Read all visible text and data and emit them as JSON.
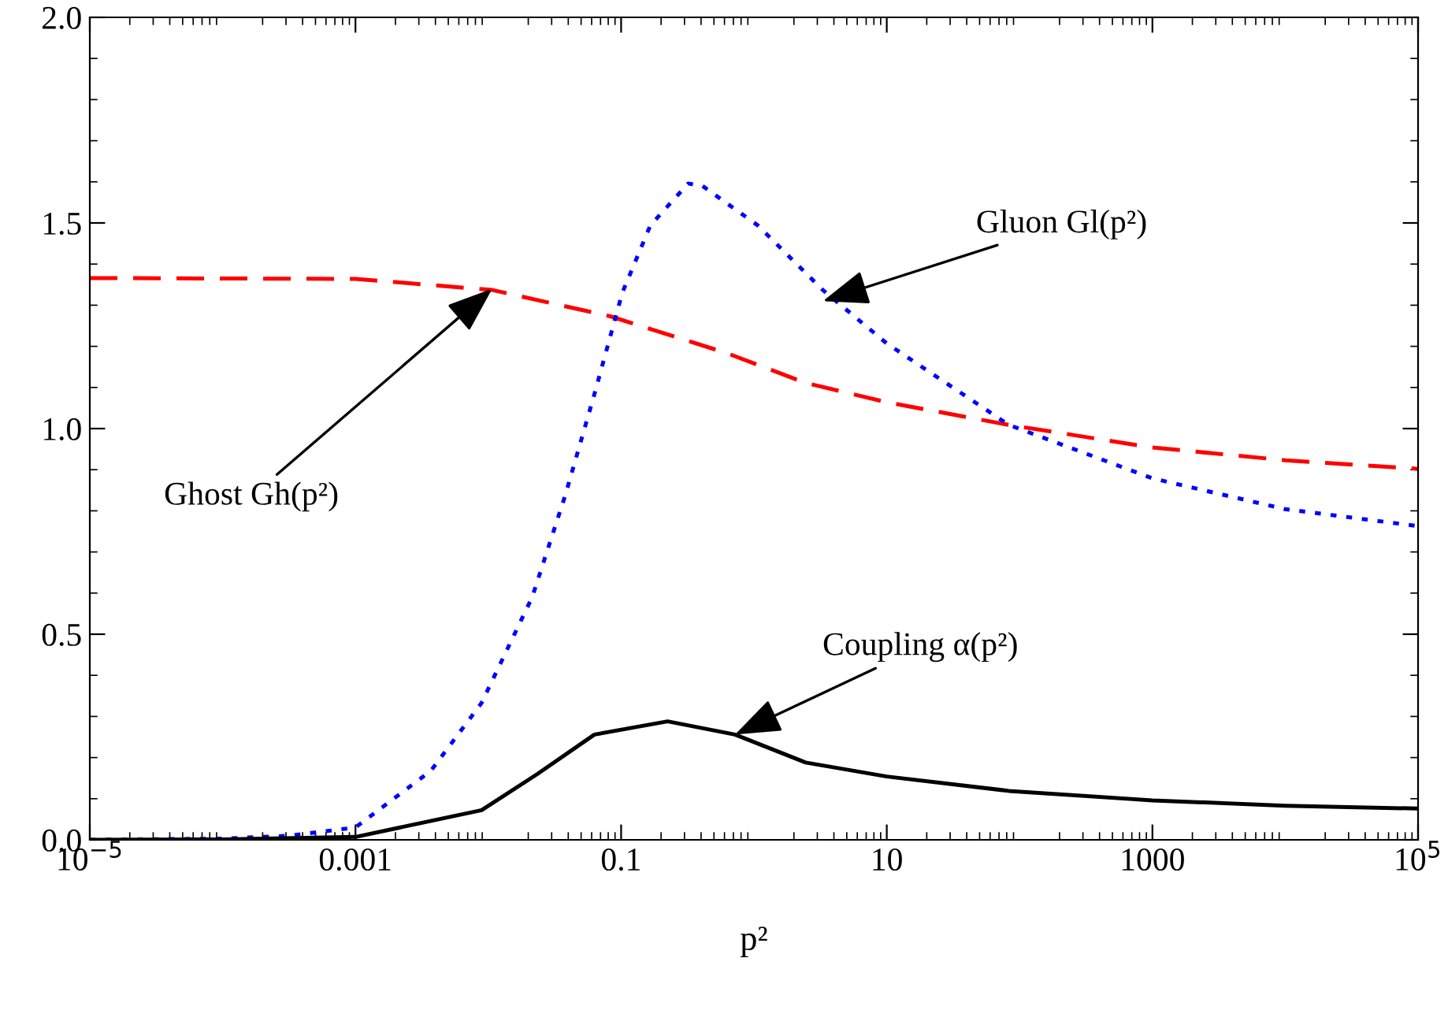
{
  "chart_data": {
    "type": "line",
    "xlabel": "p²",
    "log": "x",
    "grid": false,
    "xlim": [
      1e-05,
      100000
    ],
    "xticks": [
      {
        "value": 1e-05,
        "label": "10$^{−5}$"
      },
      {
        "value": 0.001,
        "label": "0.001"
      },
      {
        "value": 0.1,
        "label": "0.1"
      },
      {
        "value": 10,
        "label": "10"
      },
      {
        "value": 1000,
        "label": "1000"
      },
      {
        "value": 100000,
        "label": "10$^{5}$"
      }
    ],
    "ylim": [
      0,
      2
    ],
    "yticks": [
      {
        "value": 0,
        "label": "0.0"
      },
      {
        "value": 0.5,
        "label": "0.5"
      },
      {
        "value": 1,
        "label": "1.0"
      },
      {
        "value": 1.5,
        "label": "1.5"
      },
      {
        "value": 2,
        "label": "2.0"
      }
    ],
    "series": [
      {
        "color": "#ff0000",
        "line_style": "dashed",
        "x": [
          1e-05,
          0.001,
          0.0107,
          0.083,
          0.63,
          2.45,
          10,
          83,
          1000,
          10000,
          100000
        ],
        "values": [
          1.366,
          1.364,
          1.337,
          1.273,
          1.183,
          1.111,
          1.064,
          1.009,
          0.954,
          0.923,
          0.902
        ]
      },
      {
        "color": "#0000ff",
        "line_style": "dotted",
        "x": [
          1e-05,
          0.0001,
          0.00032,
          0.001,
          0.0037,
          0.0089,
          0.0214,
          0.038,
          0.063,
          0.102,
          0.166,
          0.32,
          0.41,
          1.07,
          3.3,
          10,
          83,
          1000,
          10000,
          100000
        ],
        "values": [
          0.0,
          0.003,
          0.01,
          0.03,
          0.168,
          0.333,
          0.59,
          0.838,
          1.084,
          1.33,
          1.494,
          1.596,
          1.59,
          1.494,
          1.337,
          1.207,
          1.009,
          0.879,
          0.804,
          0.763
        ]
      },
      {
        "color": "#000000",
        "line_style": "solid",
        "x": [
          1e-05,
          0.0001,
          0.001,
          0.0089,
          0.0234,
          0.063,
          0.224,
          0.72,
          2.45,
          10,
          83,
          1000,
          10000,
          100000
        ],
        "values": [
          0.0,
          0.001,
          0.007,
          0.072,
          0.16,
          0.256,
          0.288,
          0.256,
          0.188,
          0.154,
          0.119,
          0.096,
          0.083,
          0.076
        ]
      }
    ],
    "annotations": [
      {
        "text": "Gluon Gl(p²)",
        "x": 3.3,
        "y": 1.31
      },
      {
        "text": "Ghost Gh(p²)",
        "x": 0.0107,
        "y": 1.34
      },
      {
        "text": "Coupling α(p²)",
        "x": 0.72,
        "y": 0.256
      }
    ]
  }
}
